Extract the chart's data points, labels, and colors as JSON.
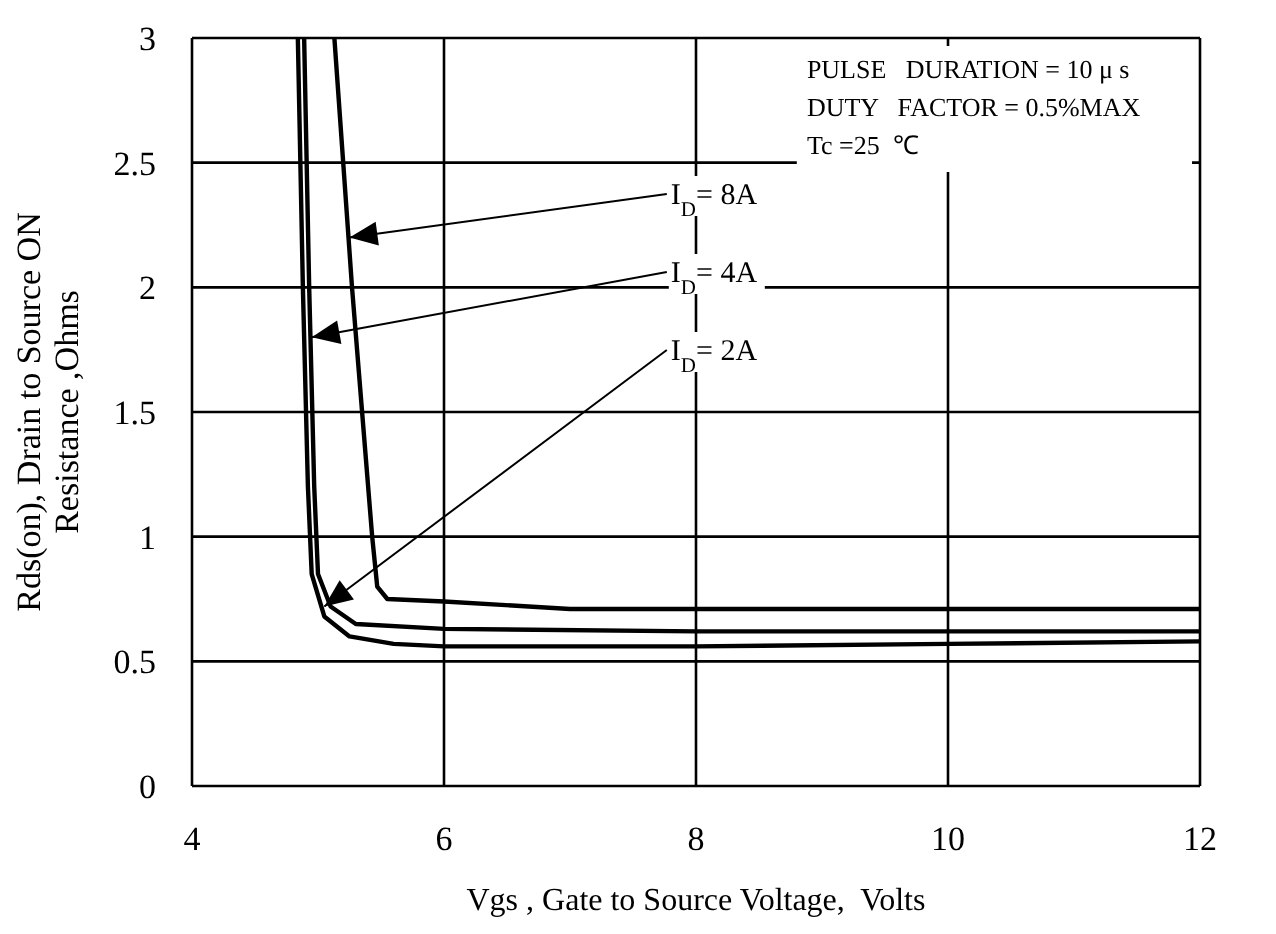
{
  "chart_data": {
    "type": "line",
    "xlabel": "Vgs , Gate to Source Voltage,  Volts",
    "ylabel": "Rds(on), Drain to Source ON\nResistance ,Ohms",
    "xlim": [
      4,
      12
    ],
    "xticks": [
      4,
      6,
      8,
      10,
      12
    ],
    "ylim": [
      0,
      3
    ],
    "yticks": [
      0,
      0.5,
      1,
      1.5,
      2,
      2.5,
      3
    ],
    "grid": true,
    "marker": "none",
    "line_style": "solid",
    "series": [
      {
        "color": "#000000",
        "x": [
          5.13,
          5.2,
          5.27,
          5.35,
          5.43,
          5.47,
          5.55,
          6,
          7,
          8,
          10,
          12
        ],
        "values": [
          3,
          2.5,
          2.0,
          1.5,
          1.0,
          0.8,
          0.75,
          0.74,
          0.71,
          0.71,
          0.71,
          0.71
        ]
      },
      {
        "color": "#000000",
        "x": [
          4.89,
          4.93,
          4.97,
          5.0,
          5.1,
          5.3,
          6,
          8,
          12
        ],
        "values": [
          3,
          2.0,
          1.2,
          0.85,
          0.72,
          0.65,
          0.63,
          0.62,
          0.62
        ]
      },
      {
        "color": "#000000",
        "x": [
          4.84,
          4.88,
          4.92,
          4.95,
          5.05,
          5.25,
          5.6,
          6,
          8,
          10,
          12
        ],
        "values": [
          3,
          2,
          1.2,
          0.85,
          0.68,
          0.6,
          0.57,
          0.56,
          0.56,
          0.57,
          0.58
        ]
      }
    ],
    "annotations": [
      {
        "text": "I$_{D}$= 8A",
        "x": 5.25,
        "y": 2.2
      },
      {
        "text": "I$_{D}$= 4A",
        "x": 4.95,
        "y": 1.8
      },
      {
        "text": "I$_{D}$= 2A",
        "x": 5.05,
        "y": 0.72
      },
      "PULSE   DURATION = 10 μ s",
      "DUTY   FACTOR = 0.5%MAX",
      "Tc =25  ℃"
    ]
  }
}
